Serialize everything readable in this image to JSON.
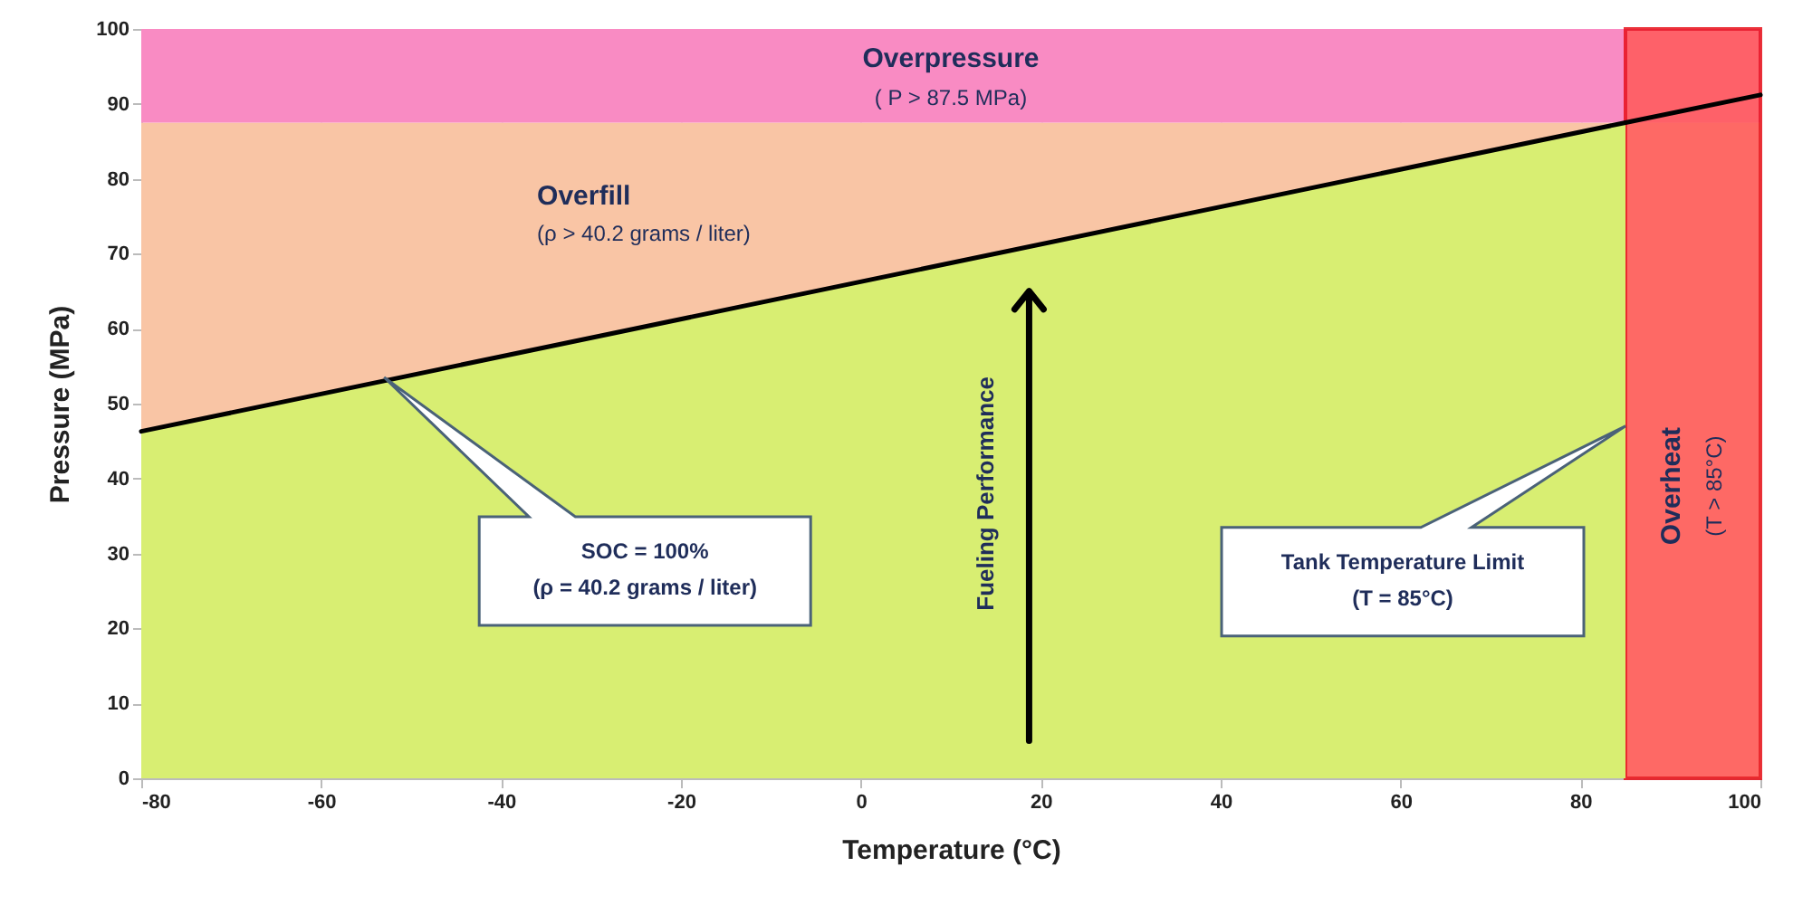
{
  "chart_data": {
    "type": "line",
    "xlabel": "Temperature (°C)",
    "ylabel": "Pressure  (MPa)",
    "xlim": [
      -80,
      100
    ],
    "xticks": [
      -80,
      -60,
      -40,
      -20,
      0,
      20,
      40,
      60,
      80,
      100
    ],
    "ylim": [
      0,
      100
    ],
    "yticks": [
      0,
      10,
      20,
      30,
      40,
      50,
      60,
      70,
      80,
      90,
      100
    ],
    "grid": true,
    "series": [
      {
        "type": "area",
        "color": "#d8ee72",
        "x": [
          -80,
          85
        ],
        "values": [
          46.3,
          87.5
        ]
      },
      {
        "color": "#000000",
        "x": [
          -80,
          85,
          100
        ],
        "values": [
          46.3,
          87.5,
          91.2
        ]
      }
    ],
    "bands": [
      {
        "axis": "y",
        "from": 0,
        "to": 87.5,
        "label": "Overfill",
        "color": "#f9c5a5"
      },
      {
        "axis": "y",
        "from": 87.5,
        "to": 100,
        "label": "Overpressure",
        "color": "#f98bc3"
      },
      {
        "axis": "x",
        "from": 85,
        "to": 100,
        "label": "Overheat",
        "color": "#ff5a5a"
      }
    ],
    "annotations": [
      "( P > 87.5 MPa)",
      "(ρ > 40.2 grams / liter)",
      "SOC = 100%\n(ρ = 40.2 grams / liter)",
      "Tank Temperature Limit\n(T = 85°C)",
      "Fueling Performance",
      "(T > 85°C)"
    ]
  }
}
